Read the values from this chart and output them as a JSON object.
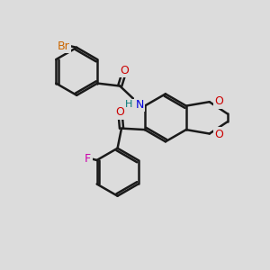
{
  "background_color": "#dcdcdc",
  "bond_color": "#1a1a1a",
  "atom_colors": {
    "Br": "#cc6600",
    "O": "#cc0000",
    "N": "#0000dd",
    "H": "#007777",
    "F": "#cc00aa"
  },
  "bond_width": 1.8,
  "figsize": [
    3.0,
    3.0
  ],
  "dpi": 100
}
